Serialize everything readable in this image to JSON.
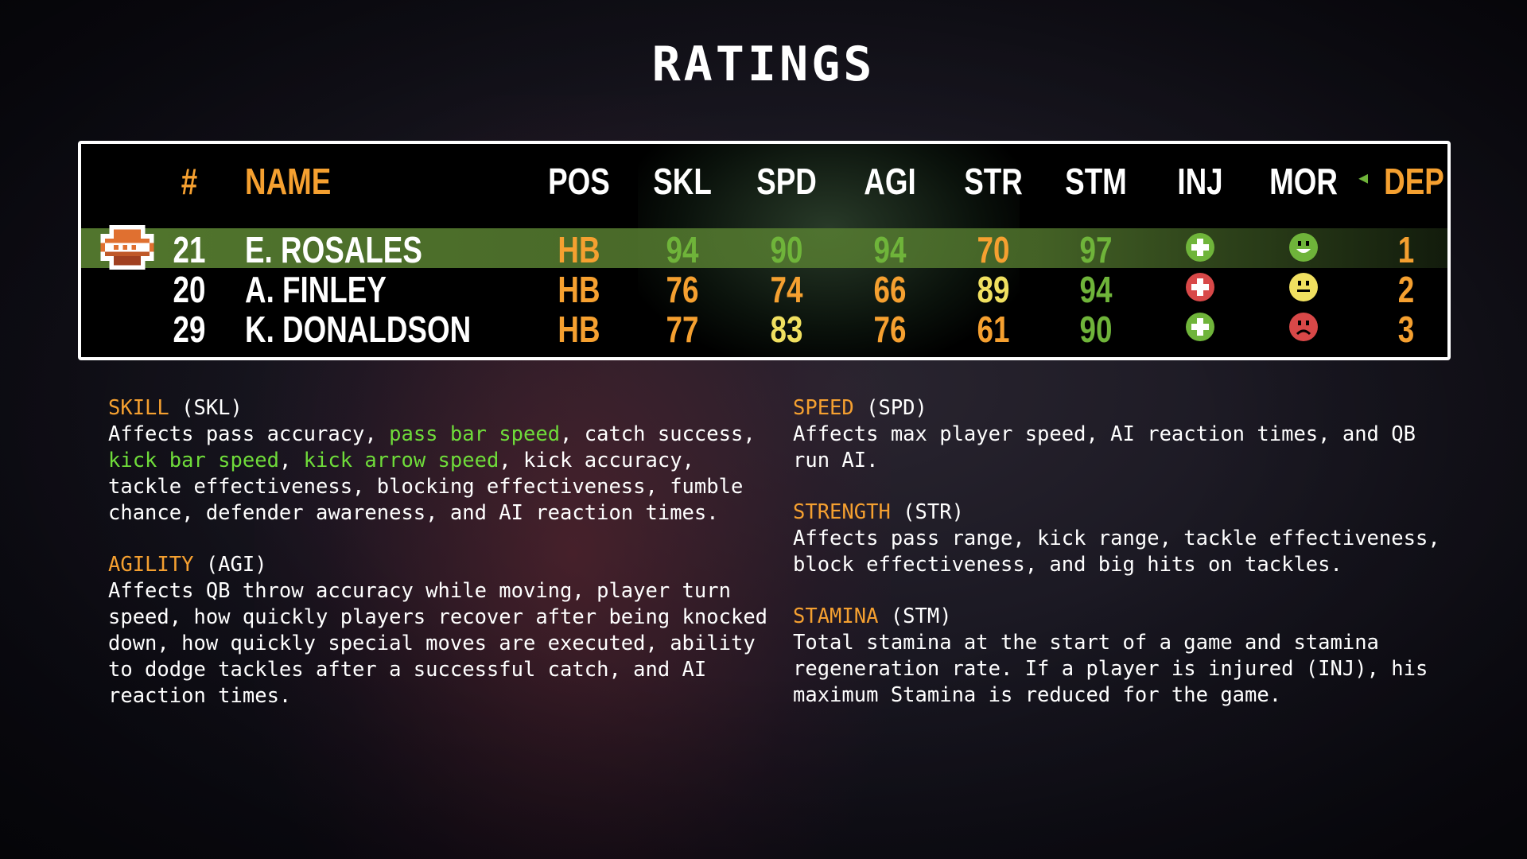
{
  "title": "RATINGS",
  "colors": {
    "high": "#6fb43a",
    "mid": "#f0e060",
    "low": "#f5a030",
    "header_accent": "#f5a030",
    "highlight_row": "#5a8232"
  },
  "table": {
    "headers": {
      "num": "#",
      "name": "NAME",
      "pos": "POS",
      "skl": "SKL",
      "spd": "SPD",
      "agi": "AGI",
      "str": "STR",
      "stm": "STM",
      "inj": "INJ",
      "mor": "MOR",
      "dep": "DEP"
    },
    "sort_icon": "triangle-left-icon",
    "selected_row": 0,
    "rows": [
      {
        "num": "21",
        "name": "E. ROSALES",
        "pos": "HB",
        "skl": "94",
        "spd": "90",
        "agi": "94",
        "str": "70",
        "stm": "97",
        "inj": "healthy",
        "mor": "happy",
        "dep": "1"
      },
      {
        "num": "20",
        "name": "A. FINLEY",
        "pos": "HB",
        "skl": "76",
        "spd": "74",
        "agi": "66",
        "str": "89",
        "stm": "94",
        "inj": "injured",
        "mor": "neutral",
        "dep": "2"
      },
      {
        "num": "29",
        "name": "K. DONALDSON",
        "pos": "HB",
        "skl": "77",
        "spd": "83",
        "agi": "76",
        "str": "61",
        "stm": "90",
        "inj": "healthy",
        "mor": "sad",
        "dep": "3"
      }
    ]
  },
  "descriptions": [
    {
      "name": "SKILL",
      "abbr": " (SKL)",
      "lines": [
        [
          [
            "Affects pass accuracy, ",
            ""
          ],
          [
            "pass bar speed",
            "g"
          ],
          [
            ", catch success,",
            ""
          ]
        ],
        [
          [
            "kick bar speed",
            "g"
          ],
          [
            ", ",
            ""
          ],
          [
            "kick arrow speed",
            "g"
          ],
          [
            ", kick accuracy,",
            ""
          ]
        ],
        [
          [
            "tackle effectiveness, blocking effectiveness, fumble",
            ""
          ]
        ],
        [
          [
            "chance, defender awareness, and AI reaction times.",
            ""
          ]
        ]
      ]
    },
    {
      "name": "AGILITY",
      "abbr": " (AGI)",
      "lines": [
        [
          [
            "Affects QB throw accuracy while moving, player turn",
            ""
          ]
        ],
        [
          [
            "speed, how quickly players recover after being knocked",
            ""
          ]
        ],
        [
          [
            "down, how quickly special moves are executed, ability",
            ""
          ]
        ],
        [
          [
            "to dodge tackles after a successful catch, and AI",
            ""
          ]
        ],
        [
          [
            "reaction times.",
            ""
          ]
        ]
      ]
    },
    {
      "name": "SPEED",
      "abbr": " (SPD)",
      "lines": [
        [
          [
            "Affects max player speed, AI reaction times, and QB",
            ""
          ]
        ],
        [
          [
            "run AI.",
            ""
          ]
        ]
      ]
    },
    {
      "name": "STRENGTH",
      "abbr": " (STR)",
      "lines": [
        [
          [
            "Affects pass range, kick range, tackle effectiveness,",
            ""
          ]
        ],
        [
          [
            "block effectiveness, and big hits on tackles.",
            ""
          ]
        ]
      ]
    },
    {
      "name": "STAMINA",
      "abbr": " (STM)",
      "lines": [
        [
          [
            "Total stamina at the start of a game and stamina",
            ""
          ]
        ],
        [
          [
            "regeneration rate. If a player is injured (INJ), his",
            ""
          ]
        ],
        [
          [
            "maximum Stamina is reduced for the game.",
            ""
          ]
        ]
      ]
    }
  ]
}
